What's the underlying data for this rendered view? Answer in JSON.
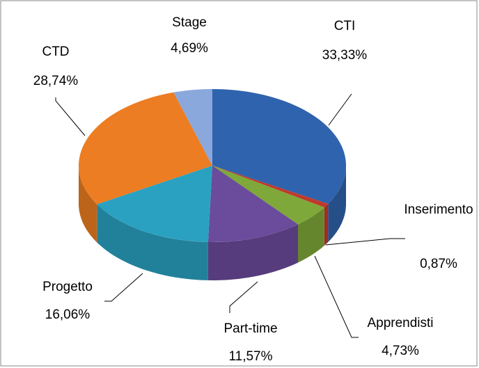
{
  "chart_data": {
    "type": "pie3d",
    "categories": [
      "CTI",
      "Inserimento",
      "Apprendisti",
      "Part-time",
      "Progetto",
      "CTD",
      "Stage"
    ],
    "values": [
      33.33,
      0.87,
      4.73,
      11.57,
      16.06,
      28.74,
      4.69
    ],
    "value_labels": [
      "33,33%",
      "0,87%",
      "4,73%",
      "11,57%",
      "16,06%",
      "28,74%",
      "4,69%"
    ],
    "colors": [
      "#2f63ad",
      "#c0392b",
      "#7fa83a",
      "#6b4b9b",
      "#2aa1c1",
      "#ec7d22",
      "#8aa8dc"
    ]
  }
}
